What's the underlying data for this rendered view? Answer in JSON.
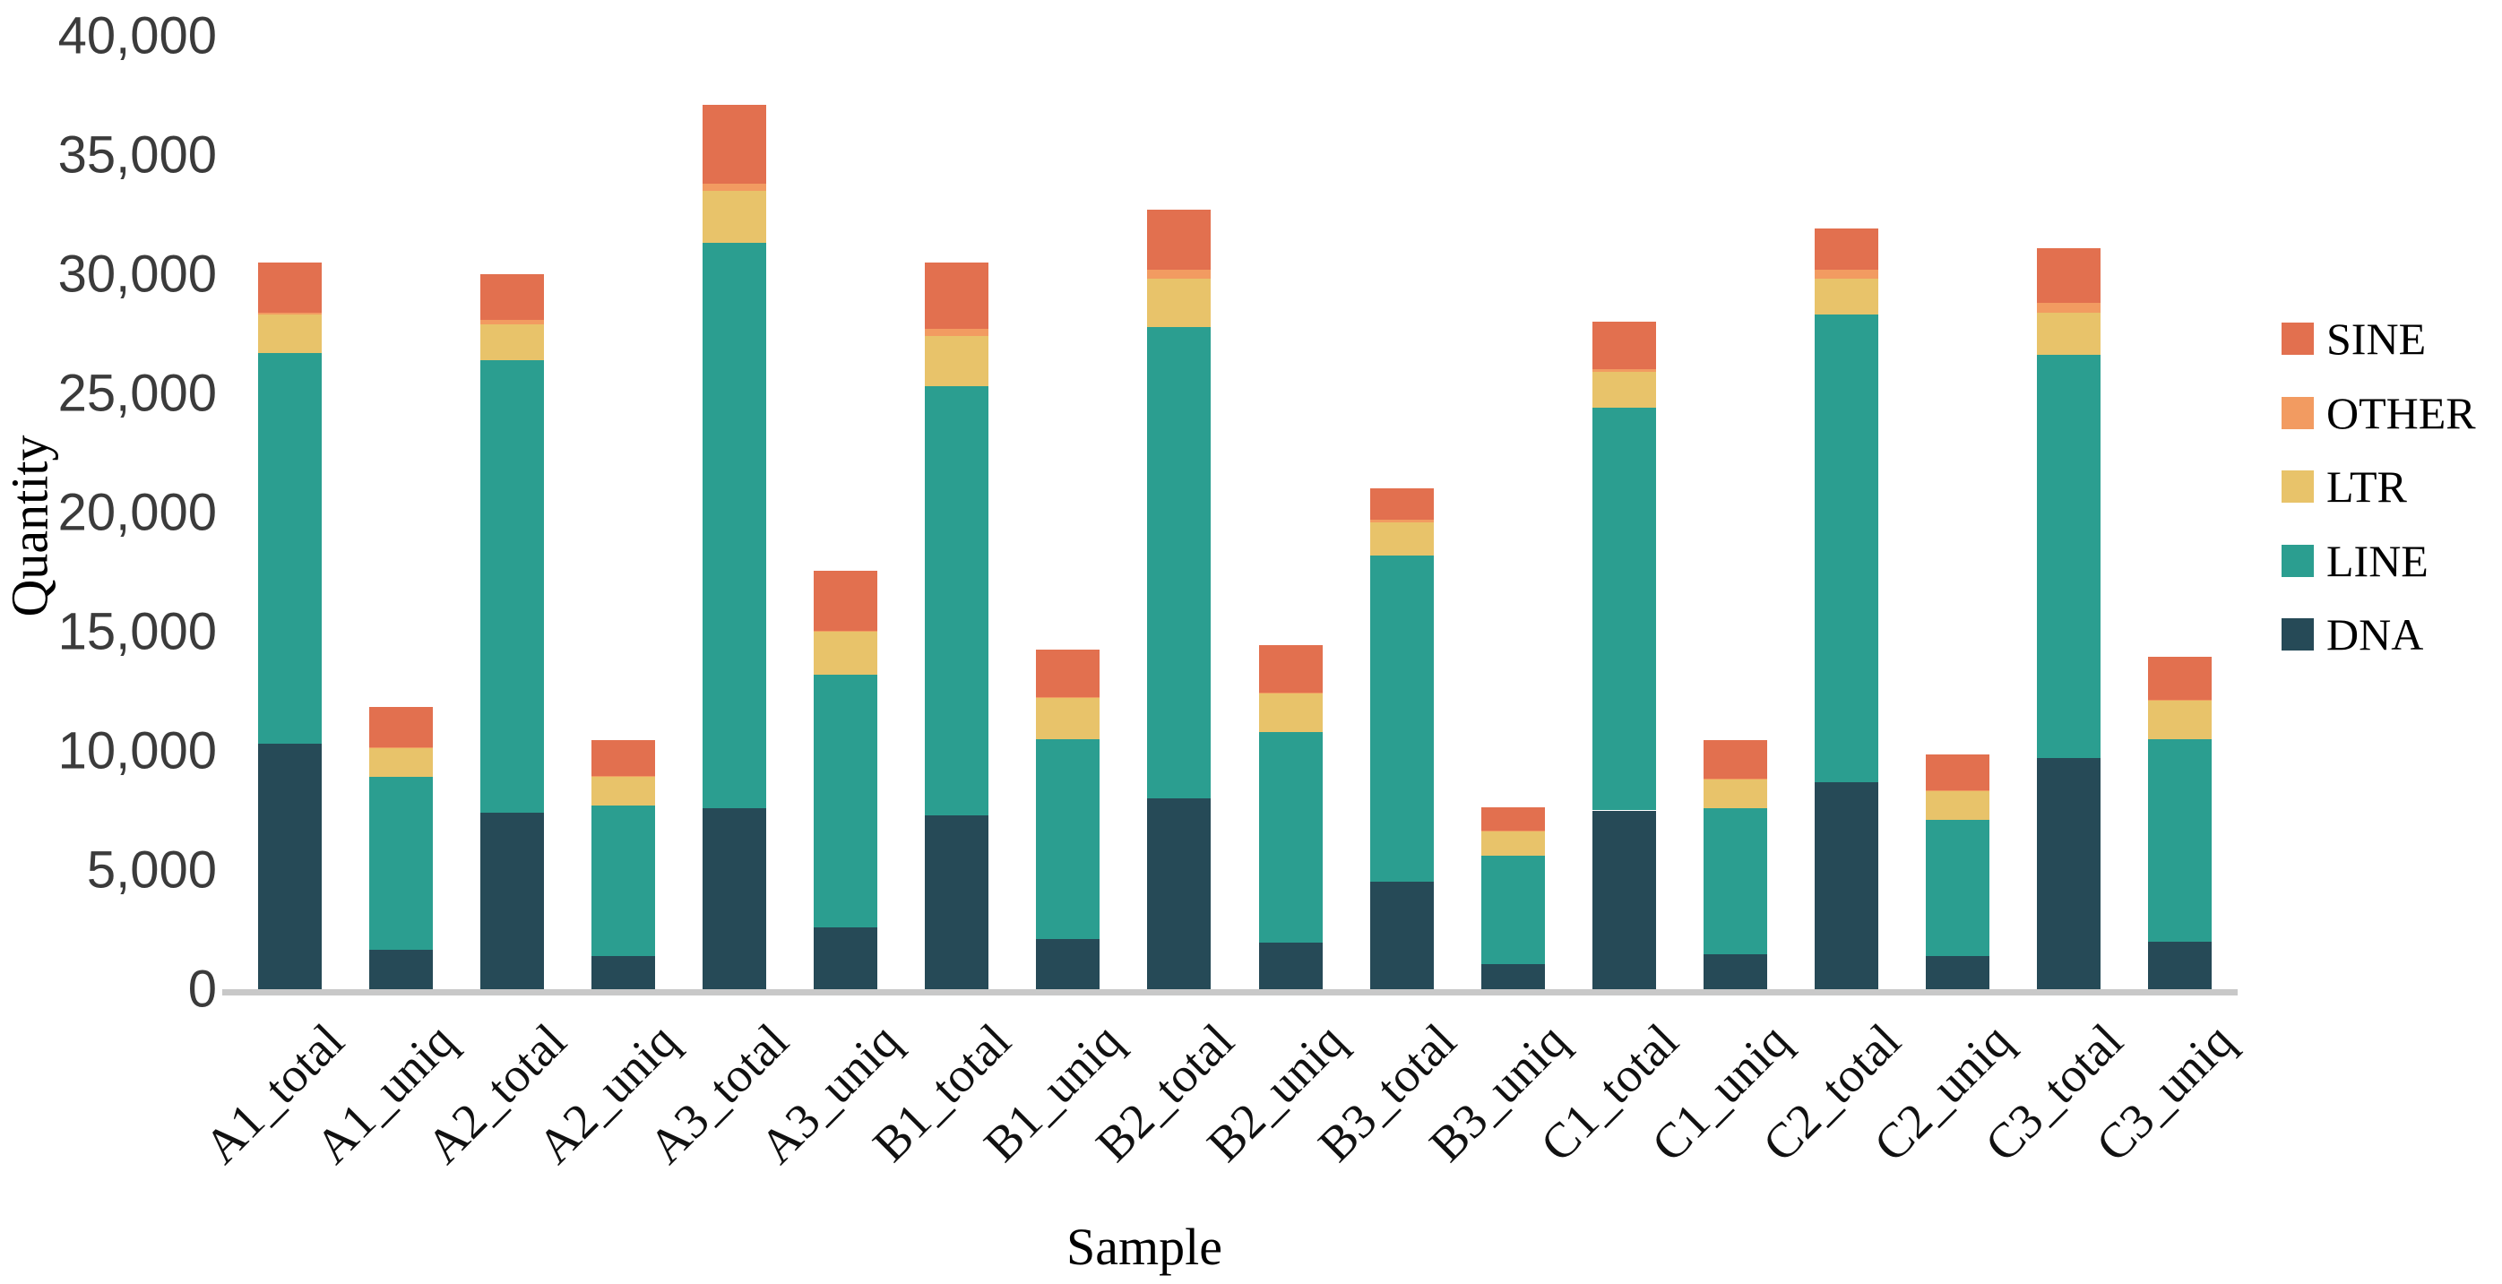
{
  "chart_data": {
    "type": "bar",
    "stacked": true,
    "title": "",
    "xlabel": "Sample",
    "ylabel": "Quantity",
    "ylim": [
      0,
      40000
    ],
    "ytick_step": 5000,
    "ytick_labels": [
      "0",
      "5,000",
      "10,000",
      "15,000",
      "20,000",
      "25,000",
      "30,000",
      "35,000",
      "40,000"
    ],
    "grid": false,
    "legend_position": "right",
    "legend_order": [
      "SINE",
      "OTHER",
      "LTR",
      "LINE",
      "DNA"
    ],
    "categories": [
      "A1_total",
      "A1_uniq",
      "A2_total",
      "A2_uniq",
      "A3_total",
      "A3_uniq",
      "B1_total",
      "B1_uniq",
      "B2_total",
      "B2_uniq",
      "B3_total",
      "B3_uniq",
      "C1_total",
      "C1_uniq",
      "C2_total",
      "C2_uniq",
      "C3_total",
      "C3_uniq"
    ],
    "series": [
      {
        "name": "DNA",
        "color": "#264a57",
        "values": [
          10300,
          1650,
          7400,
          1400,
          7600,
          2600,
          7300,
          2100,
          8000,
          1950,
          4500,
          1050,
          7500,
          1450,
          8700,
          1400,
          9700,
          2000
        ]
      },
      {
        "name": "LINE",
        "color": "#2b9e90",
        "values": [
          16400,
          7250,
          19000,
          6300,
          23700,
          10600,
          18000,
          8400,
          19800,
          8850,
          13700,
          4550,
          16900,
          6150,
          19600,
          5700,
          16900,
          8500
        ]
      },
      {
        "name": "LTR",
        "color": "#e8c36a",
        "values": [
          1600,
          1200,
          1500,
          1200,
          2200,
          1800,
          2100,
          1700,
          2000,
          1600,
          1400,
          1000,
          1500,
          1200,
          1500,
          1200,
          1800,
          1600
        ]
      },
      {
        "name": "OTHER",
        "color": "#f29b61",
        "values": [
          100,
          50,
          200,
          50,
          300,
          50,
          300,
          50,
          400,
          50,
          100,
          50,
          100,
          50,
          400,
          50,
          400,
          50
        ]
      },
      {
        "name": "SINE",
        "color": "#e2704f",
        "values": [
          2100,
          1700,
          1900,
          1500,
          3300,
          2500,
          2800,
          2000,
          2500,
          2000,
          1300,
          1000,
          2000,
          1600,
          1700,
          1500,
          2300,
          1800
        ]
      }
    ]
  },
  "colors": {
    "axis_line": "#c8c8c8",
    "tick_text": "#3b3b3b",
    "label_text": "#000000"
  }
}
